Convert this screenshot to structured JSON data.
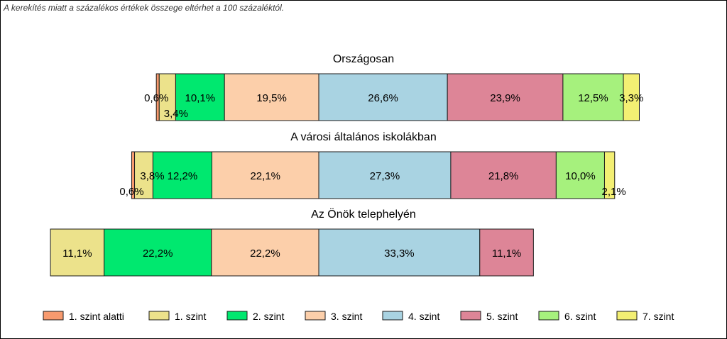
{
  "note": "A kerekítés miatt a  százalékos értékek összege eltérhet a 100 százaléktól.",
  "chart_data": {
    "type": "bar",
    "orientation": "horizontal-stacked-percent",
    "groups": [
      {
        "title": "Országosan",
        "values": [
          0.6,
          3.4,
          10.1,
          19.5,
          26.6,
          23.9,
          12.5,
          3.3
        ],
        "labels": [
          "0,6%",
          "3,4%",
          "10,1%",
          "19,5%",
          "26,6%",
          "23,9%",
          "12,5%",
          "3,3%"
        ]
      },
      {
        "title": "A városi általános iskolákban",
        "values": [
          0.6,
          3.8,
          12.2,
          22.1,
          27.3,
          21.8,
          10.0,
          2.1
        ],
        "labels": [
          "0,6%",
          "3,8%",
          "12,2%",
          "22,1%",
          "27,3%",
          "21,8%",
          "10,0%",
          "2,1%"
        ]
      },
      {
        "title": "Az Önök telephelyén",
        "values": [
          0,
          11.1,
          22.2,
          22.2,
          33.3,
          11.1,
          0,
          0
        ],
        "labels": [
          "",
          "11,1%",
          "22,2%",
          "22,2%",
          "33,3%",
          "11,1%",
          "",
          ""
        ]
      }
    ],
    "series": [
      {
        "name": "1. szint alatti",
        "color": "#f79a6e"
      },
      {
        "name": "1. szint",
        "color": "#ece28b"
      },
      {
        "name": "2. szint",
        "color": "#00e86f"
      },
      {
        "name": "3. szint",
        "color": "#fccfaa"
      },
      {
        "name": "4. szint",
        "color": "#a9d3e2"
      },
      {
        "name": "5. szint",
        "color": "#dd8597"
      },
      {
        "name": "6. szint",
        "color": "#a6f17d"
      },
      {
        "name": "7. szint",
        "color": "#f3ef73"
      }
    ],
    "legend_position": "bottom",
    "alignment": "centered on boundary between 3. szint and 4. szint"
  }
}
